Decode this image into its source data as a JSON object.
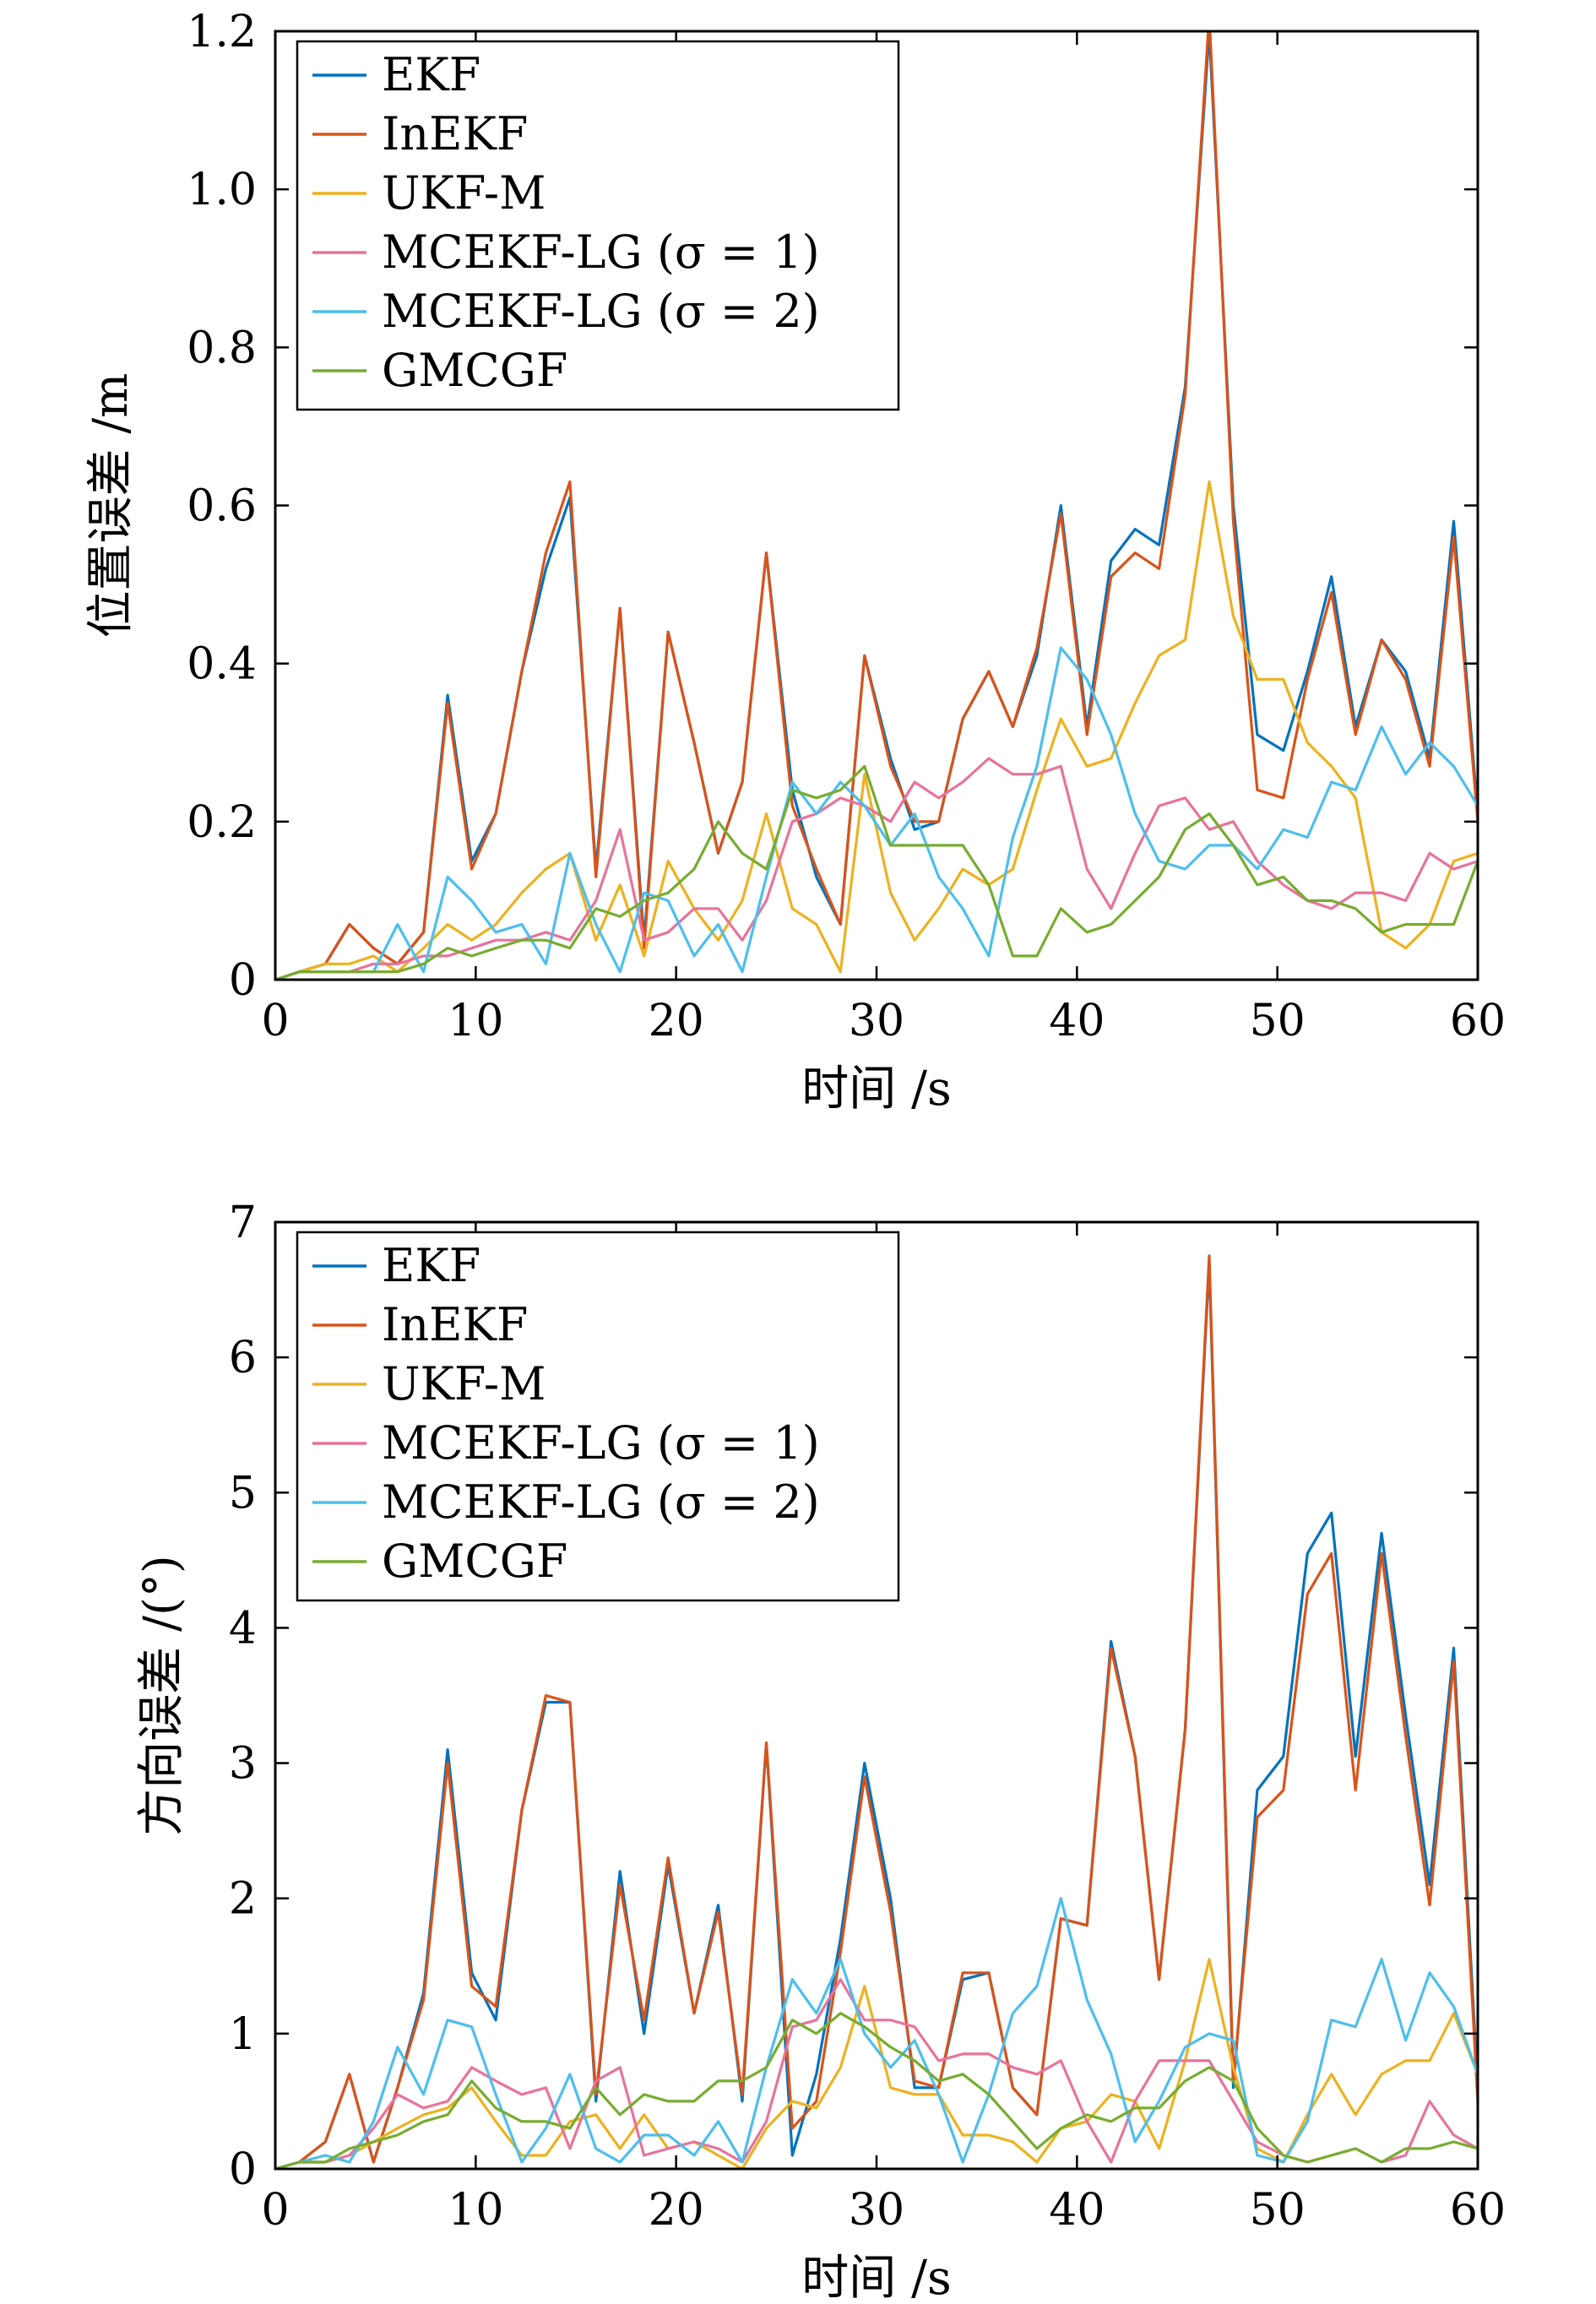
{
  "chart_data": [
    {
      "type": "line",
      "xlabel": "时间 /s",
      "ylabel": "位置误差 /m",
      "xlim": [
        0,
        60
      ],
      "ylim": [
        0,
        1.2
      ],
      "xticks": [
        0,
        10,
        20,
        30,
        40,
        50,
        60
      ],
      "yticks": [
        0,
        0.2,
        0.4,
        0.6,
        0.8,
        1.0,
        1.2
      ],
      "ytick_labels": [
        "0",
        "0.2",
        "0.4",
        "0.6",
        "0.8",
        "1.0",
        "1.2"
      ],
      "grid": false,
      "legend_position": "top-left",
      "x": [
        0,
        1.2,
        2.5,
        3.7,
        4.9,
        6.1,
        7.4,
        8.6,
        9.8,
        11.0,
        12.3,
        13.5,
        14.7,
        16.0,
        17.2,
        18.4,
        19.6,
        20.9,
        22.1,
        23.3,
        24.5,
        25.8,
        27.0,
        28.2,
        29.4,
        30.7,
        31.9,
        33.1,
        34.3,
        35.6,
        36.8,
        38.0,
        39.2,
        40.5,
        41.7,
        42.9,
        44.1,
        45.4,
        46.6,
        47.8,
        49.0,
        50.3,
        51.5,
        52.7,
        53.9,
        55.2,
        56.4,
        57.6,
        58.8,
        60.0
      ],
      "series": [
        {
          "name": "EKF",
          "color": "#0072BD",
          "values": [
            0,
            0.01,
            0.02,
            0.07,
            0.04,
            0.02,
            0.06,
            0.36,
            0.15,
            0.21,
            0.39,
            0.52,
            0.61,
            0.14,
            0.47,
            0.05,
            0.44,
            0.3,
            0.16,
            0.25,
            0.54,
            0.24,
            0.13,
            0.07,
            0.41,
            0.28,
            0.19,
            0.2,
            0.33,
            0.39,
            0.32,
            0.41,
            0.6,
            0.32,
            0.53,
            0.57,
            0.55,
            0.75,
            1.2,
            0.6,
            0.31,
            0.29,
            0.39,
            0.51,
            0.32,
            0.43,
            0.39,
            0.28,
            0.58,
            0.21
          ]
        },
        {
          "name": "InEKF",
          "color": "#D95319",
          "values": [
            0,
            0.01,
            0.02,
            0.07,
            0.04,
            0.02,
            0.06,
            0.35,
            0.14,
            0.21,
            0.39,
            0.54,
            0.63,
            0.13,
            0.47,
            0.04,
            0.44,
            0.3,
            0.16,
            0.25,
            0.54,
            0.22,
            0.14,
            0.07,
            0.41,
            0.27,
            0.2,
            0.2,
            0.33,
            0.39,
            0.32,
            0.42,
            0.59,
            0.31,
            0.51,
            0.54,
            0.52,
            0.74,
            1.22,
            0.58,
            0.24,
            0.23,
            0.38,
            0.49,
            0.31,
            0.43,
            0.38,
            0.27,
            0.56,
            0.2
          ]
        },
        {
          "name": "UKF-M",
          "color": "#EDB120",
          "values": [
            0,
            0.01,
            0.02,
            0.02,
            0.03,
            0.01,
            0.04,
            0.07,
            0.05,
            0.07,
            0.11,
            0.14,
            0.16,
            0.05,
            0.12,
            0.03,
            0.15,
            0.09,
            0.05,
            0.1,
            0.21,
            0.09,
            0.07,
            0.01,
            0.26,
            0.11,
            0.05,
            0.09,
            0.14,
            0.12,
            0.14,
            0.24,
            0.33,
            0.27,
            0.28,
            0.35,
            0.41,
            0.43,
            0.63,
            0.46,
            0.38,
            0.38,
            0.3,
            0.27,
            0.23,
            0.06,
            0.04,
            0.07,
            0.15,
            0.16
          ]
        },
        {
          "name": "MCEKF-LG (σ = 1)",
          "color": "#E7739C",
          "values": [
            0,
            0.01,
            0.01,
            0.01,
            0.02,
            0.02,
            0.03,
            0.03,
            0.04,
            0.05,
            0.05,
            0.06,
            0.05,
            0.1,
            0.19,
            0.05,
            0.06,
            0.09,
            0.09,
            0.05,
            0.1,
            0.2,
            0.21,
            0.23,
            0.22,
            0.2,
            0.25,
            0.23,
            0.25,
            0.28,
            0.26,
            0.26,
            0.27,
            0.14,
            0.09,
            0.16,
            0.22,
            0.23,
            0.19,
            0.2,
            0.15,
            0.12,
            0.1,
            0.09,
            0.11,
            0.11,
            0.1,
            0.16,
            0.14,
            0.15
          ]
        },
        {
          "name": "MCEKF-LG (σ = 2)",
          "color": "#4DBEEE",
          "values": [
            0,
            0.01,
            0.01,
            0.01,
            0.01,
            0.07,
            0.01,
            0.13,
            0.1,
            0.06,
            0.07,
            0.02,
            0.16,
            0.07,
            0.01,
            0.11,
            0.1,
            0.03,
            0.07,
            0.01,
            0.13,
            0.25,
            0.21,
            0.25,
            0.22,
            0.17,
            0.21,
            0.13,
            0.09,
            0.03,
            0.18,
            0.27,
            0.42,
            0.38,
            0.31,
            0.21,
            0.15,
            0.14,
            0.17,
            0.17,
            0.14,
            0.19,
            0.18,
            0.25,
            0.24,
            0.32,
            0.26,
            0.3,
            0.27,
            0.22
          ]
        },
        {
          "name": "GMCGF",
          "color": "#77AC30",
          "values": [
            0,
            0.01,
            0.01,
            0.01,
            0.01,
            0.01,
            0.02,
            0.04,
            0.03,
            0.04,
            0.05,
            0.05,
            0.04,
            0.09,
            0.08,
            0.1,
            0.11,
            0.14,
            0.2,
            0.16,
            0.14,
            0.24,
            0.23,
            0.24,
            0.27,
            0.17,
            0.17,
            0.17,
            0.17,
            0.12,
            0.03,
            0.03,
            0.09,
            0.06,
            0.07,
            0.1,
            0.13,
            0.19,
            0.21,
            0.17,
            0.12,
            0.13,
            0.1,
            0.1,
            0.09,
            0.06,
            0.07,
            0.07,
            0.07,
            0.15
          ]
        }
      ]
    },
    {
      "type": "line",
      "xlabel": "时间 /s",
      "ylabel": "方向误差 /(°)",
      "xlim": [
        0,
        60
      ],
      "ylim": [
        0,
        7
      ],
      "xticks": [
        0,
        10,
        20,
        30,
        40,
        50,
        60
      ],
      "yticks": [
        0,
        1,
        2,
        3,
        4,
        5,
        6,
        7
      ],
      "ytick_labels": [
        "0",
        "1",
        "2",
        "3",
        "4",
        "5",
        "6",
        "7"
      ],
      "grid": false,
      "legend_position": "top-left",
      "x": [
        0,
        1.2,
        2.5,
        3.7,
        4.9,
        6.1,
        7.4,
        8.6,
        9.8,
        11.0,
        12.3,
        13.5,
        14.7,
        16.0,
        17.2,
        18.4,
        19.6,
        20.9,
        22.1,
        23.3,
        24.5,
        25.8,
        27.0,
        28.2,
        29.4,
        30.7,
        31.9,
        33.1,
        34.3,
        35.6,
        36.8,
        38.0,
        39.2,
        40.5,
        41.7,
        42.9,
        44.1,
        45.4,
        46.6,
        47.8,
        49.0,
        50.3,
        51.5,
        52.7,
        53.9,
        55.2,
        56.4,
        57.6,
        58.8,
        60.0
      ],
      "series": [
        {
          "name": "EKF",
          "color": "#0072BD",
          "values": [
            0,
            0.05,
            0.2,
            0.7,
            0.05,
            0.6,
            1.3,
            3.1,
            1.45,
            1.1,
            2.65,
            3.45,
            3.45,
            0.5,
            2.2,
            1.0,
            2.25,
            1.15,
            1.95,
            0.5,
            3.15,
            0.1,
            0.7,
            1.7,
            3.0,
            2.0,
            0.6,
            0.6,
            1.4,
            1.45,
            0.6,
            0.4,
            1.85,
            1.8,
            3.9,
            3.05,
            1.4,
            3.25,
            6.7,
            0.6,
            2.8,
            3.05,
            4.55,
            4.85,
            3.05,
            4.7,
            3.35,
            2.1,
            3.85,
            0.6
          ]
        },
        {
          "name": "InEKF",
          "color": "#D95319",
          "values": [
            0,
            0.05,
            0.2,
            0.7,
            0.05,
            0.6,
            1.25,
            3.0,
            1.35,
            1.2,
            2.65,
            3.5,
            3.45,
            0.55,
            2.1,
            1.1,
            2.3,
            1.15,
            1.9,
            0.55,
            3.15,
            0.3,
            0.5,
            1.6,
            2.9,
            1.9,
            0.65,
            0.6,
            1.45,
            1.45,
            0.6,
            0.4,
            1.85,
            1.8,
            3.85,
            3.05,
            1.4,
            3.25,
            6.75,
            0.65,
            2.6,
            2.8,
            4.25,
            4.55,
            2.8,
            4.55,
            3.2,
            1.95,
            3.75,
            0.5
          ]
        },
        {
          "name": "UKF-M",
          "color": "#EDB120",
          "values": [
            0,
            0.05,
            0.05,
            0.1,
            0.2,
            0.3,
            0.4,
            0.45,
            0.6,
            0.35,
            0.1,
            0.1,
            0.35,
            0.4,
            0.15,
            0.4,
            0.15,
            0.2,
            0.1,
            0.0,
            0.3,
            0.5,
            0.45,
            0.75,
            1.35,
            0.6,
            0.55,
            0.55,
            0.25,
            0.25,
            0.2,
            0.05,
            0.3,
            0.35,
            0.55,
            0.5,
            0.15,
            0.8,
            1.55,
            0.75,
            0.15,
            0.05,
            0.4,
            0.7,
            0.4,
            0.7,
            0.8,
            0.8,
            1.15,
            0.7
          ]
        },
        {
          "name": "MCEKF-LG (σ = 1)",
          "color": "#E7739C",
          "values": [
            0,
            0.05,
            0.05,
            0.1,
            0.3,
            0.55,
            0.45,
            0.5,
            0.75,
            0.65,
            0.55,
            0.6,
            0.15,
            0.65,
            0.75,
            0.1,
            0.15,
            0.2,
            0.15,
            0.05,
            0.35,
            1.05,
            1.1,
            1.4,
            1.1,
            1.1,
            1.05,
            0.8,
            0.85,
            0.85,
            0.75,
            0.7,
            0.8,
            0.35,
            0.05,
            0.5,
            0.8,
            0.8,
            0.8,
            0.5,
            0.2,
            0.1,
            0.05,
            0.1,
            0.15,
            0.05,
            0.1,
            0.5,
            0.25,
            0.15
          ]
        },
        {
          "name": "MCEKF-LG (σ = 2)",
          "color": "#4DBEEE",
          "values": [
            0,
            0.05,
            0.1,
            0.05,
            0.35,
            0.9,
            0.55,
            1.1,
            1.05,
            0.55,
            0.05,
            0.3,
            0.7,
            0.15,
            0.05,
            0.25,
            0.25,
            0.1,
            0.35,
            0.05,
            0.75,
            1.4,
            1.15,
            1.55,
            1.0,
            0.75,
            0.95,
            0.55,
            0.05,
            0.55,
            1.15,
            1.35,
            2.0,
            1.25,
            0.85,
            0.2,
            0.5,
            0.9,
            1.0,
            0.95,
            0.1,
            0.05,
            0.35,
            1.1,
            1.05,
            1.55,
            0.95,
            1.45,
            1.2,
            0.7
          ]
        },
        {
          "name": "GMCGF",
          "color": "#77AC30",
          "values": [
            0,
            0.05,
            0.05,
            0.15,
            0.2,
            0.25,
            0.35,
            0.4,
            0.65,
            0.45,
            0.35,
            0.35,
            0.3,
            0.6,
            0.4,
            0.55,
            0.5,
            0.5,
            0.65,
            0.65,
            0.75,
            1.1,
            1.0,
            1.15,
            1.05,
            0.9,
            0.8,
            0.65,
            0.7,
            0.55,
            0.35,
            0.15,
            0.3,
            0.4,
            0.35,
            0.45,
            0.45,
            0.65,
            0.75,
            0.65,
            0.3,
            0.1,
            0.05,
            0.1,
            0.15,
            0.05,
            0.15,
            0.15,
            0.2,
            0.15
          ]
        }
      ]
    }
  ]
}
